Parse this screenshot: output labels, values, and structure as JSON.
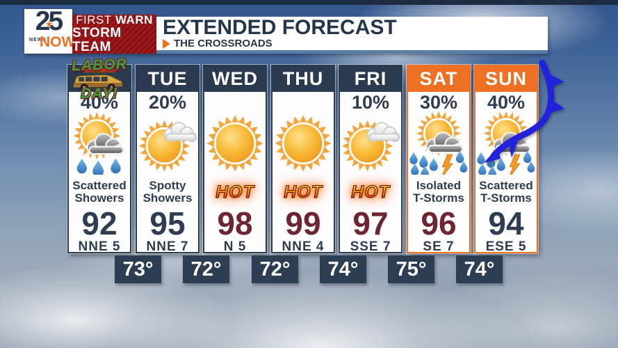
{
  "header": {
    "logo": {
      "number": "25",
      "news": "NEWS",
      "now": "NOW",
      "star": "★"
    },
    "badge": {
      "line1_regular": "FIRST",
      "line1_bold": "WARN",
      "line2": "STORM TEAM"
    },
    "title": "EXTENDED FORECAST",
    "subtitle": "THE CROSSROADS"
  },
  "colors": {
    "navy": "#2b3a4e",
    "accent_orange": "#ee7123",
    "maroon_temp": "#6d2530",
    "badge_red": "#8e1214",
    "front_blue": "#2222dd",
    "steel_bar": "#5b7ea6"
  },
  "forecast": {
    "hot_label": "HOT",
    "days": [
      {
        "label": "",
        "labor_line1": "LABOR",
        "labor_line2": "DAY!",
        "pop": "40%",
        "icon": "sun-rain",
        "condition1": "Scattered",
        "condition2": "Showers",
        "high": "92",
        "wind": "NNE 5"
      },
      {
        "label": "TUE",
        "pop": "20%",
        "icon": "sun-cloud",
        "condition1": "Spotty",
        "condition2": "Showers",
        "high": "95",
        "wind": "NNE 7"
      },
      {
        "label": "WED",
        "pop": "",
        "icon": "sun",
        "condition1": "",
        "condition2": "",
        "high": "98",
        "wind": "N 5"
      },
      {
        "label": "THU",
        "pop": "",
        "icon": "sun",
        "condition1": "",
        "condition2": "",
        "high": "99",
        "wind": "NNE 4"
      },
      {
        "label": "FRI",
        "pop": "10%",
        "icon": "sun-cloud",
        "condition1": "",
        "condition2": "",
        "high": "97",
        "wind": "SSE 7"
      },
      {
        "label": "SAT",
        "pop": "30%",
        "icon": "storm",
        "condition1": "Isolated",
        "condition2": "T-Storms",
        "high": "96",
        "wind": "SE 7"
      },
      {
        "label": "SUN",
        "pop": "40%",
        "icon": "storm",
        "condition1": "Scattered",
        "condition2": "T-Storms",
        "high": "94",
        "wind": "ESE 5"
      }
    ],
    "lows": [
      "73°",
      "72°",
      "72°",
      "74°",
      "75°",
      "74°"
    ]
  }
}
